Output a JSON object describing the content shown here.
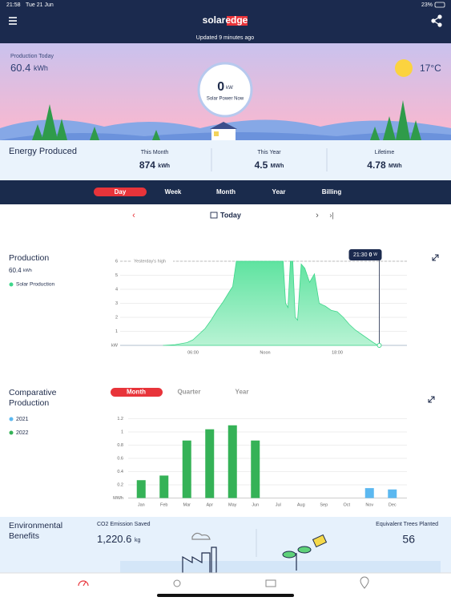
{
  "status_bar": {
    "time": "21:58",
    "date": "Tue 21 Jun",
    "battery": "23%"
  },
  "header": {
    "logo_solar": "solar",
    "logo_edge": "edge",
    "updated": "Updated 9 minutes ago"
  },
  "banner": {
    "label": "Production Today",
    "value": "60.4",
    "unit": "kWh",
    "temperature": "17°C",
    "power_value": "0",
    "power_unit": "kW",
    "power_label": "Solar Power Now"
  },
  "energy": {
    "title": "Energy Produced",
    "items": [
      {
        "label": "This Month",
        "value": "874",
        "unit": "kWh"
      },
      {
        "label": "This Year",
        "value": "4.5",
        "unit": "MWh"
      },
      {
        "label": "Lifetime",
        "value": "4.78",
        "unit": "MWh"
      }
    ]
  },
  "tabs": [
    "Day",
    "Week",
    "Month",
    "Year",
    "Billing"
  ],
  "date_nav": {
    "label": "Today"
  },
  "production": {
    "title": "Production",
    "value": "60.4",
    "unit": "kWh"
  },
  "comparative": {
    "title": "Comparative Production",
    "tabs": [
      "Month",
      "Quarter",
      "Year"
    ]
  },
  "environment": {
    "title": "Environmental Benefits",
    "co2_label": "CO2 Emission Saved",
    "co2_value": "1,220.6",
    "co2_unit": "kg",
    "trees_label": "Equivalent Trees Planted",
    "trees_value": "56"
  },
  "chart_data": [
    {
      "type": "area",
      "x": [
        3.5,
        4.5,
        5.5,
        6,
        6.5,
        7,
        7.5,
        8,
        8.5,
        9,
        9.3,
        9.6,
        10,
        11,
        12,
        13,
        13.5,
        13.7,
        13.9,
        14.1,
        14.3,
        14.5,
        14.7,
        15,
        15.3,
        15.7,
        16.1,
        16.5,
        17,
        17.5,
        18,
        18.5,
        19,
        19.5,
        20,
        20.5,
        21,
        21.4
      ],
      "series": [
        {
          "name": "Solar Production",
          "color": "#3fd68b",
          "values": [
            0,
            0.05,
            0.2,
            0.4,
            0.8,
            1.2,
            1.8,
            2.5,
            3.1,
            3.8,
            4.2,
            6,
            6,
            6,
            6,
            6,
            6,
            3,
            2.7,
            6,
            6,
            2,
            1.8,
            5.8,
            5.5,
            4.5,
            5.1,
            3,
            2.8,
            2.5,
            2.4,
            2.0,
            1.5,
            1.1,
            0.8,
            0.5,
            0.2,
            0
          ]
        }
      ],
      "xlim": [
        0,
        24
      ],
      "xticks": [
        {
          "value": 6,
          "label": "06:00"
        },
        {
          "value": 12,
          "label": "Noon"
        },
        {
          "value": 18,
          "label": "18:00"
        }
      ],
      "ylim": [
        0,
        6
      ],
      "yticks": [
        {
          "value": 0,
          "label": "kW"
        },
        1,
        2,
        3,
        4,
        5,
        6
      ],
      "grid": true,
      "annotation": {
        "text": "Yesterday's high",
        "y": 6
      },
      "tooltip": {
        "x": 21.5,
        "time": "21:30",
        "value": 0,
        "unit": "W"
      }
    },
    {
      "type": "bar",
      "categories": [
        "Jan",
        "Feb",
        "Mar",
        "Apr",
        "May",
        "Jun",
        "Jul",
        "Aug",
        "Sep",
        "Oct",
        "Nov",
        "Dec"
      ],
      "series": [
        {
          "name": "2021",
          "color": "#5bb8f0",
          "values": [
            null,
            null,
            null,
            null,
            null,
            null,
            null,
            null,
            null,
            null,
            0.15,
            0.13
          ]
        },
        {
          "name": "2022",
          "color": "#35b257",
          "values": [
            0.27,
            0.34,
            0.87,
            1.04,
            1.1,
            0.87,
            null,
            null,
            null,
            null,
            null,
            null
          ]
        }
      ],
      "ylim": [
        0,
        1.2
      ],
      "yticks": [
        {
          "value": 0,
          "label": "MWh"
        },
        0.2,
        0.4,
        0.6,
        0.8,
        1,
        1.2
      ],
      "grid": true
    }
  ]
}
